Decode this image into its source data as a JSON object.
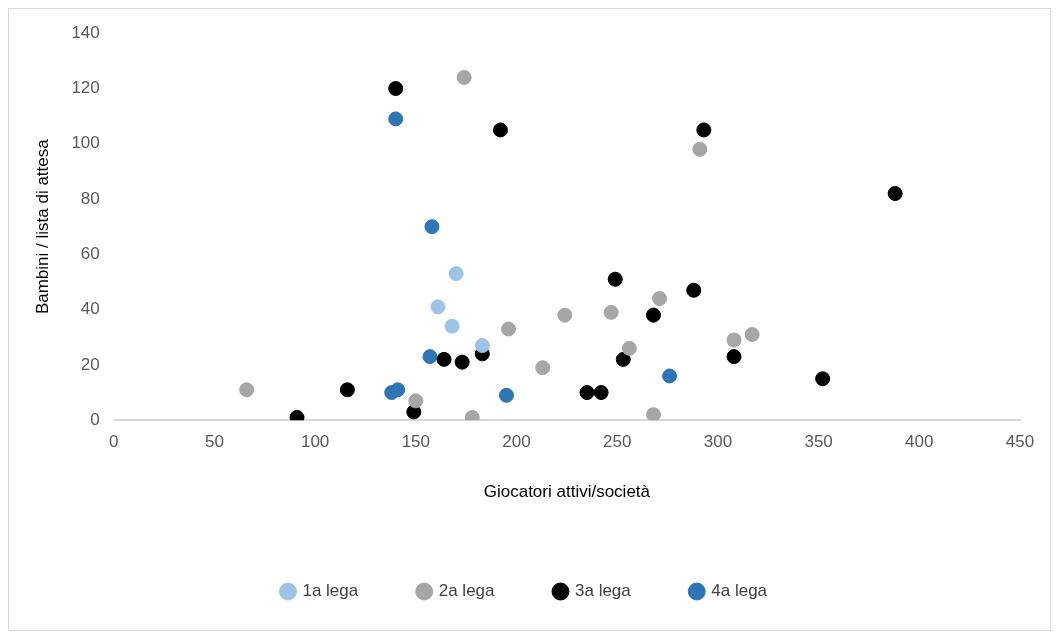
{
  "chart_data": {
    "type": "scatter",
    "xlabel": "Giocatori attivi/società",
    "ylabel": "Bambini / lista di attesa",
    "xlim": [
      0,
      450
    ],
    "xticks": [
      0,
      50,
      100,
      150,
      200,
      250,
      300,
      350,
      400,
      450
    ],
    "ylim": [
      0,
      140
    ],
    "yticks": [
      0,
      20,
      40,
      60,
      80,
      100,
      120,
      140
    ],
    "grid": false,
    "legend": "bottom",
    "marker": "circle",
    "series": [
      {
        "name": "1a lega",
        "color": "#9dc3e6",
        "x": [
          161,
          170,
          168,
          183
        ],
        "values": [
          41,
          53,
          34,
          27
        ]
      },
      {
        "name": "2a lega",
        "color": "#a6a6a6",
        "x": [
          66,
          150,
          174,
          178,
          196,
          213,
          224,
          247,
          256,
          271,
          268,
          291,
          308,
          317
        ],
        "values": [
          11,
          7,
          124,
          1,
          33,
          19,
          38,
          39,
          26,
          44,
          2,
          98,
          29,
          31
        ]
      },
      {
        "name": "3a lega",
        "color": "#000000",
        "x": [
          91,
          116,
          140,
          149,
          164,
          173,
          183,
          192,
          235,
          242,
          249,
          253,
          268,
          288,
          293,
          308,
          352,
          388
        ],
        "values": [
          1,
          11,
          120,
          3,
          22,
          21,
          24,
          105,
          10,
          10,
          51,
          22,
          38,
          47,
          105,
          23,
          15,
          82
        ]
      },
      {
        "name": "4a lega",
        "color": "#2e75b6",
        "x": [
          140,
          158,
          157,
          138,
          141,
          195,
          276
        ],
        "values": [
          109,
          70,
          23,
          10,
          11,
          9,
          16
        ]
      }
    ]
  }
}
